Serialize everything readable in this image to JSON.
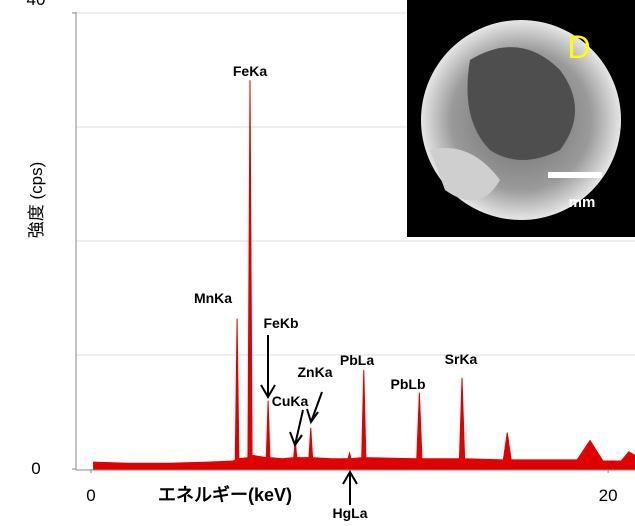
{
  "chart_data": {
    "type": "area",
    "ylabel": "強度 (cps)",
    "xlabel": "エネルギー(keV)",
    "color": "#e00000",
    "xlim": [
      -0.58,
      21.04
    ],
    "ylim": [
      0,
      40
    ],
    "xticks": [
      0,
      20
    ],
    "yticks": [
      0,
      40
    ],
    "ygrid": [
      10,
      20,
      30,
      40
    ],
    "x": [
      0.1,
      0.1,
      1.5,
      3.0,
      4.5,
      5.5,
      5.58,
      5.65,
      5.72,
      6.07,
      6.15,
      6.23,
      6.78,
      6.85,
      6.92,
      7.4,
      7.84,
      7.9,
      7.96,
      8.43,
      8.5,
      8.57,
      9.3,
      9.94,
      10.0,
      10.06,
      10.47,
      10.55,
      10.63,
      12.6,
      12.7,
      12.8,
      14.25,
      14.35,
      14.45,
      15.95,
      16.1,
      16.25,
      18.8,
      19.3,
      19.8,
      20.5,
      20.8,
      21.04
    ],
    "values": [
      0,
      0.6,
      0.5,
      0.5,
      0.6,
      0.7,
      0.8,
      13.2,
      0.9,
      1.0,
      34.1,
      1.2,
      1.0,
      6.0,
      1.0,
      0.9,
      1.0,
      2.5,
      1.0,
      1.0,
      3.6,
      1.0,
      0.9,
      0.9,
      1.4,
      0.9,
      1.0,
      8.7,
      1.0,
      0.9,
      6.7,
      0.9,
      0.9,
      8.0,
      0.9,
      0.8,
      3.2,
      0.8,
      0.8,
      2.5,
      0.7,
      0.7,
      1.5,
      1.2
    ],
    "annotations": [
      "FeKa",
      "MnKa",
      "FeKb",
      "ZnKa",
      "PbLa",
      "CuKa",
      "PbLb",
      "SrKa",
      "HgLa"
    ],
    "inset": {
      "label": "D",
      "scale_label": "mm"
    }
  }
}
